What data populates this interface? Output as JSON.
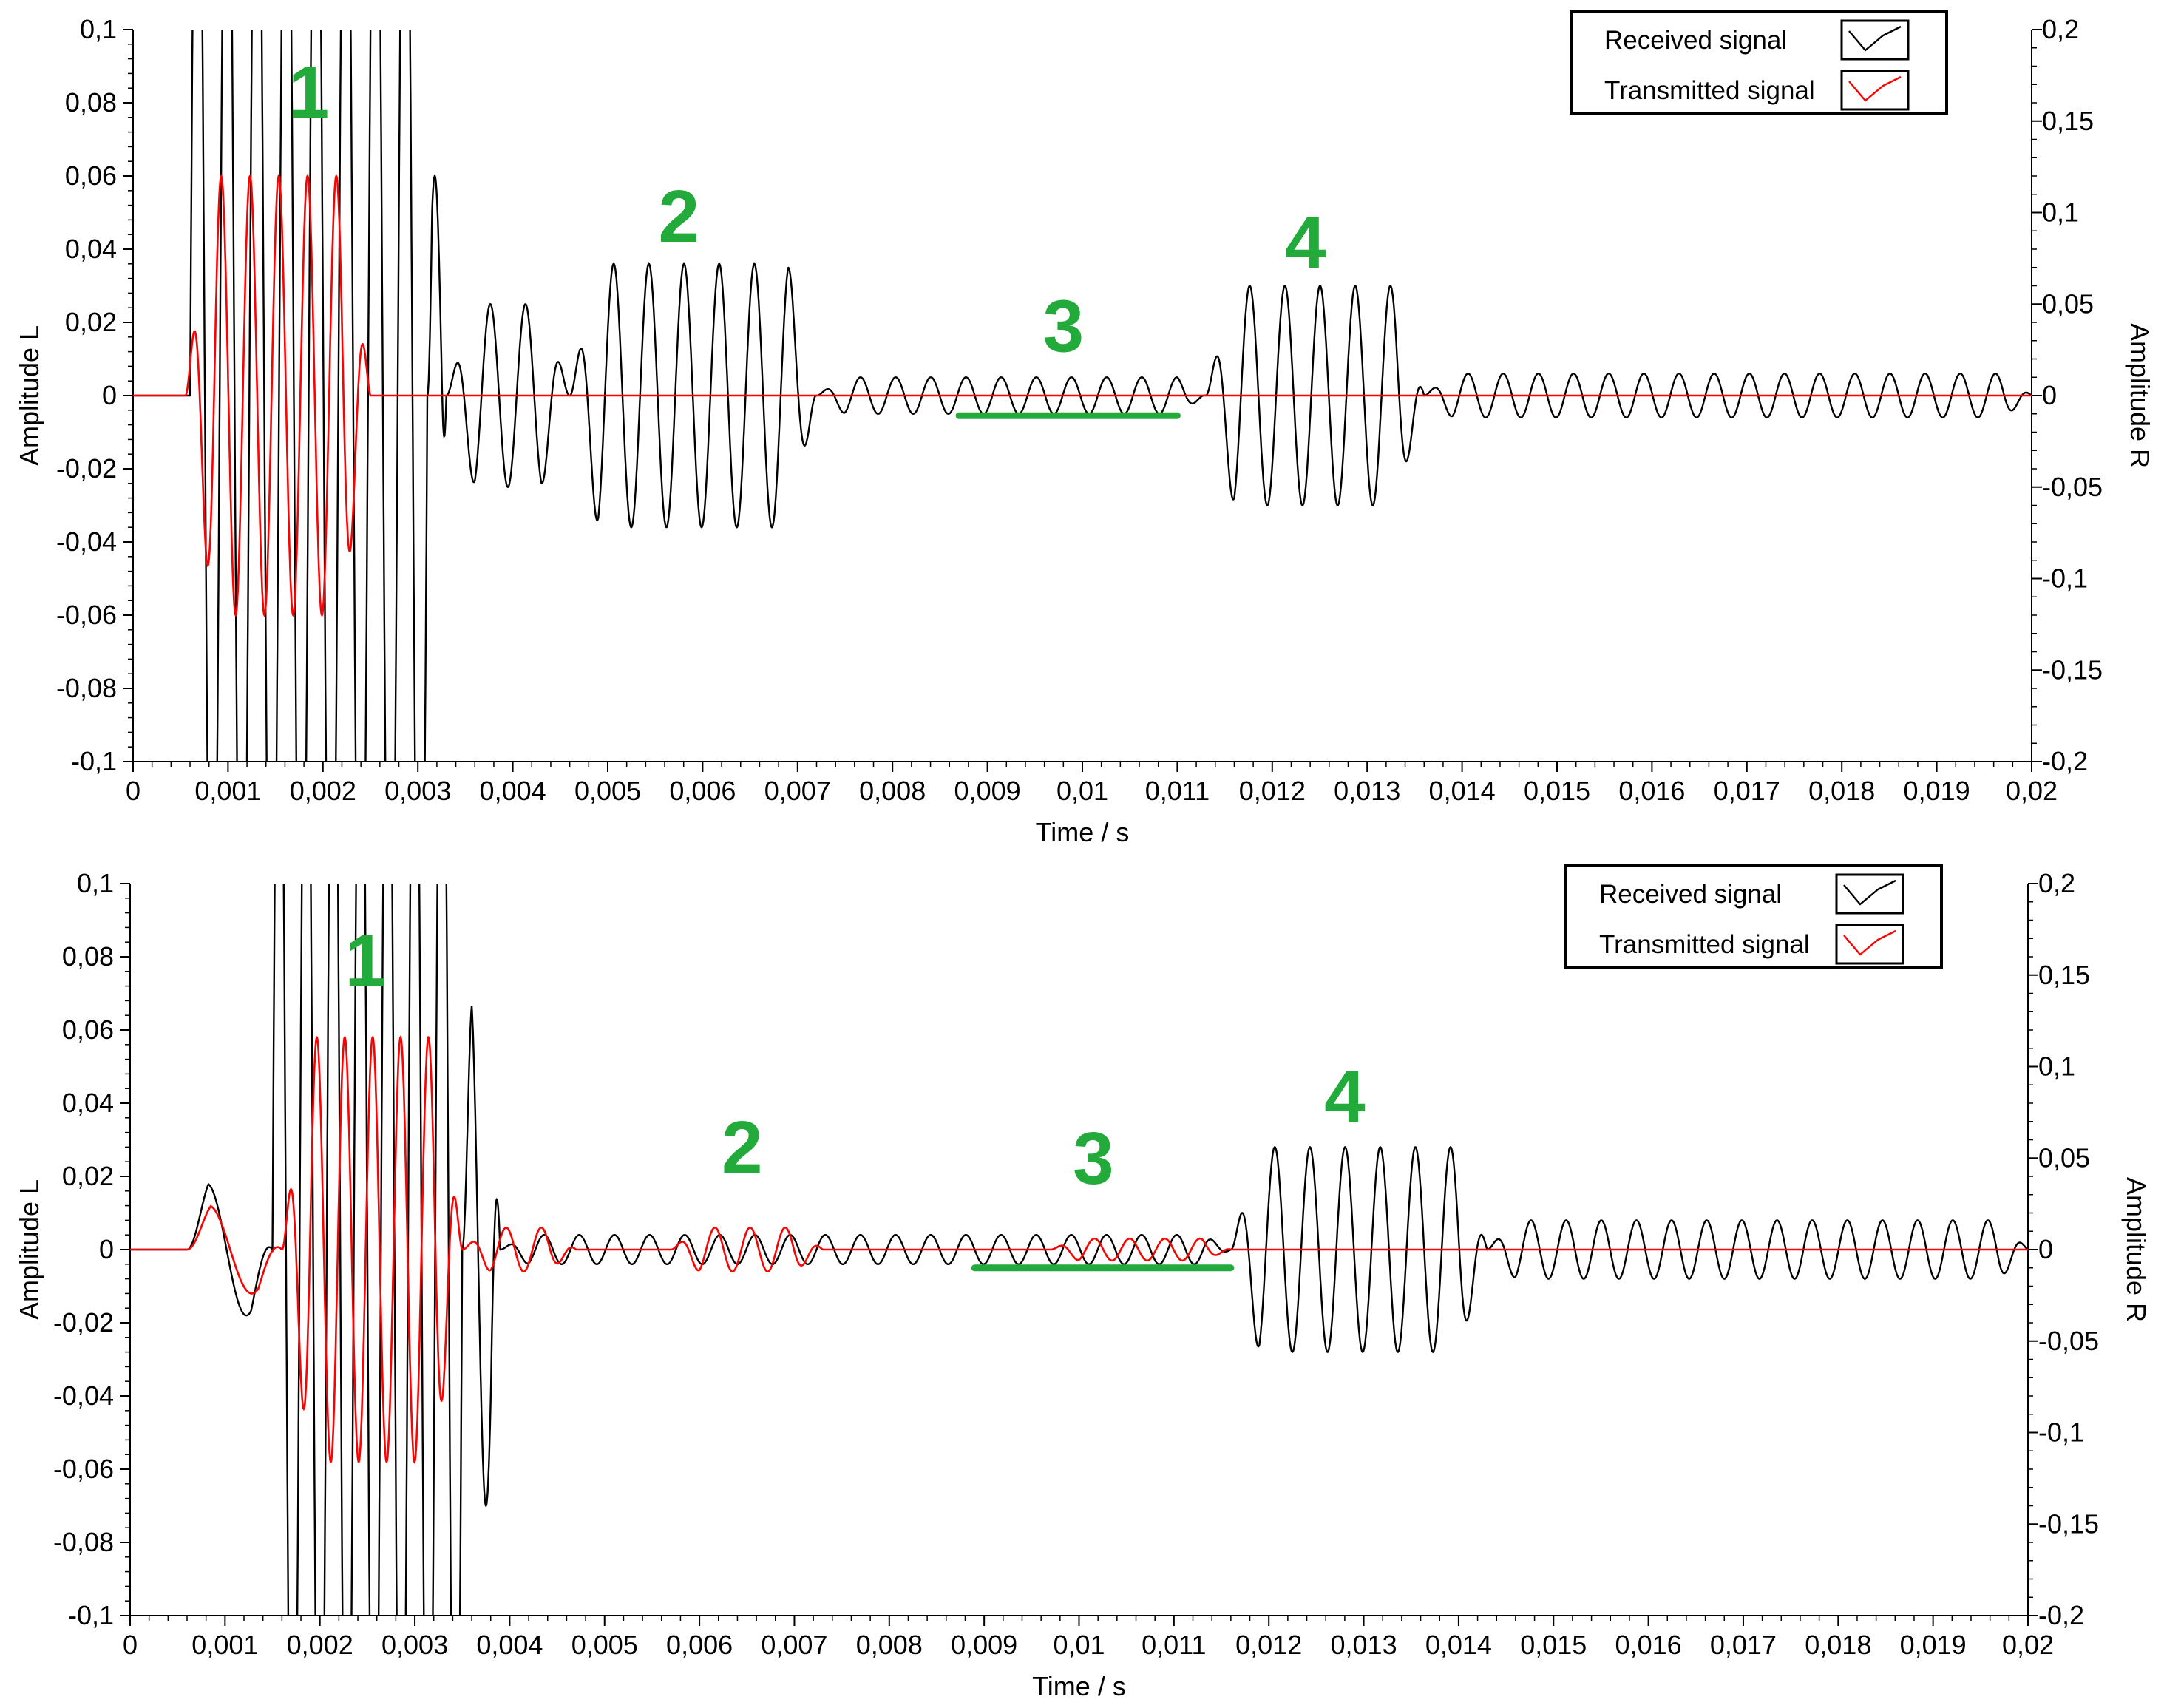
{
  "colors": {
    "received": "#000000",
    "transmitted": "#ff0000",
    "annotation": "#22aa3a",
    "axis": "#000000"
  },
  "chart_data": [
    {
      "type": "line",
      "xlabel": "Time / s",
      "ylabel_left": "Amplitude L",
      "ylabel_right": "Amplitude R",
      "xlim": [
        0,
        0.02
      ],
      "ylim_left": [
        -0.1,
        0.1
      ],
      "ylim_right": [
        -0.2,
        0.2
      ],
      "x_ticks": [
        "0",
        "0,001",
        "0,002",
        "0,003",
        "0,004",
        "0,005",
        "0,006",
        "0,007",
        "0,008",
        "0,009",
        "0,01",
        "0,011",
        "0,012",
        "0,013",
        "0,014",
        "0,015",
        "0,016",
        "0,017",
        "0,018",
        "0,019",
        "0,02"
      ],
      "y_ticks_left": [
        "0,1",
        "0,08",
        "0,06",
        "0,04",
        "0,02",
        "0",
        "-0,02",
        "-0,04",
        "-0,06",
        "-0,08",
        "-0,1"
      ],
      "y_ticks_right": [
        "0,2",
        "0,15",
        "0,1",
        "0,05",
        "0",
        "-0,05",
        "-0,1",
        "-0,15",
        "-0,2"
      ],
      "legend": {
        "placement": "top-right",
        "entries": [
          "Received signal",
          "Transmitted signal"
        ]
      },
      "series": [
        {
          "name": "Received signal",
          "axis": "left",
          "color": "#000000",
          "bursts": [
            {
              "t_start": 0.0006,
              "t_end": 0.0031,
              "peak_amplitude": 0.2,
              "frequency_hz": 3200,
              "note": "saturated"
            },
            {
              "t_start": 0.0031,
              "t_end": 0.0033,
              "peak_amplitude": 0.06,
              "frequency_hz": 3200
            },
            {
              "t_start": 0.0033,
              "t_end": 0.0046,
              "peak_amplitude": 0.025,
              "frequency_hz": 2700
            },
            {
              "t_start": 0.0046,
              "t_end": 0.0072,
              "peak_amplitude": 0.036,
              "frequency_hz": 2700
            },
            {
              "t_start": 0.0072,
              "t_end": 0.0113,
              "peak_amplitude": 0.005,
              "frequency_hz": 2700
            },
            {
              "t_start": 0.0113,
              "t_end": 0.0136,
              "peak_amplitude": 0.03,
              "frequency_hz": 2700
            },
            {
              "t_start": 0.0136,
              "t_end": 0.02,
              "peak_amplitude": 0.006,
              "frequency_hz": 2700
            }
          ]
        },
        {
          "name": "Transmitted signal",
          "axis": "left",
          "color": "#ff0000",
          "bursts": [
            {
              "t_start": 0.00055,
              "t_end": 0.0025,
              "peak_amplitude": 0.06,
              "frequency_hz": 3300
            },
            {
              "t_start": 0.0025,
              "t_end": 0.02,
              "peak_amplitude": 0.0,
              "frequency_hz": 0
            }
          ]
        }
      ],
      "annotations": [
        {
          "text": "1",
          "x": 0.00185,
          "y": 0.076
        },
        {
          "text": "2",
          "x": 0.00575,
          "y": 0.042
        },
        {
          "text": "3",
          "x": 0.0098,
          "y": 0.012
        },
        {
          "text": "4",
          "x": 0.01235,
          "y": 0.035
        }
      ],
      "highlight_segment": {
        "x_start": 0.0087,
        "x_end": 0.011,
        "y": -0.0055
      }
    },
    {
      "type": "line",
      "xlabel": "Time / s",
      "ylabel_left": "Amplitude L",
      "ylabel_right": "Amplitude R",
      "xlim": [
        0,
        0.02
      ],
      "ylim_left": [
        -0.1,
        0.1
      ],
      "ylim_right": [
        -0.2,
        0.2
      ],
      "x_ticks": [
        "0",
        "0,001",
        "0,002",
        "0,003",
        "0,004",
        "0,005",
        "0,006",
        "0,007",
        "0,008",
        "0,009",
        "0,01",
        "0,011",
        "0,012",
        "0,013",
        "0,014",
        "0,015",
        "0,016",
        "0,017",
        "0,018",
        "0,019",
        "0,02"
      ],
      "y_ticks_left": [
        "0,1",
        "0,08",
        "0,06",
        "0,04",
        "0,02",
        "0",
        "-0,02",
        "-0,04",
        "-0,06",
        "-0,08",
        "-0,1"
      ],
      "y_ticks_right": [
        "0,2",
        "0,15",
        "0,1",
        "0,05",
        "0",
        "-0,05",
        "-0,1",
        "-0,15",
        "-0,2"
      ],
      "legend": {
        "placement": "top-right",
        "entries": [
          "Received signal",
          "Transmitted signal"
        ]
      },
      "series": [
        {
          "name": "Received signal",
          "axis": "left",
          "color": "#000000",
          "bursts": [
            {
              "t_start": 0.0006,
              "t_end": 0.0015,
              "peak_amplitude": 0.018,
              "frequency_hz": 1200
            },
            {
              "t_start": 0.0015,
              "t_end": 0.0035,
              "peak_amplitude": 0.2,
              "frequency_hz": 3500,
              "note": "saturated"
            },
            {
              "t_start": 0.0035,
              "t_end": 0.0039,
              "peak_amplitude": 0.07,
              "frequency_hz": 3000
            },
            {
              "t_start": 0.0039,
              "t_end": 0.0116,
              "peak_amplitude": 0.004,
              "frequency_hz": 2700
            },
            {
              "t_start": 0.0116,
              "t_end": 0.0143,
              "peak_amplitude": 0.028,
              "frequency_hz": 2700
            },
            {
              "t_start": 0.0143,
              "t_end": 0.02,
              "peak_amplitude": 0.008,
              "frequency_hz": 2700
            }
          ]
        },
        {
          "name": "Transmitted signal",
          "axis": "left",
          "color": "#ff0000",
          "bursts": [
            {
              "t_start": 0.0006,
              "t_end": 0.0016,
              "peak_amplitude": 0.012,
              "frequency_hz": 1100
            },
            {
              "t_start": 0.0016,
              "t_end": 0.0035,
              "peak_amplitude": 0.058,
              "frequency_hz": 3400
            },
            {
              "t_start": 0.0035,
              "t_end": 0.0047,
              "peak_amplitude": 0.006,
              "frequency_hz": 2700
            },
            {
              "t_start": 0.0057,
              "t_end": 0.0073,
              "peak_amplitude": 0.006,
              "frequency_hz": 2700
            },
            {
              "t_start": 0.0097,
              "t_end": 0.0116,
              "peak_amplitude": 0.003,
              "frequency_hz": 2700
            }
          ]
        }
      ],
      "annotations": [
        {
          "text": "1",
          "x": 0.00248,
          "y": 0.072
        },
        {
          "text": "2",
          "x": 0.00645,
          "y": 0.021
        },
        {
          "text": "3",
          "x": 0.01015,
          "y": 0.018
        },
        {
          "text": "4",
          "x": 0.0128,
          "y": 0.035
        }
      ],
      "highlight_segment": {
        "x_start": 0.0089,
        "x_end": 0.0116,
        "y": -0.005
      }
    }
  ]
}
